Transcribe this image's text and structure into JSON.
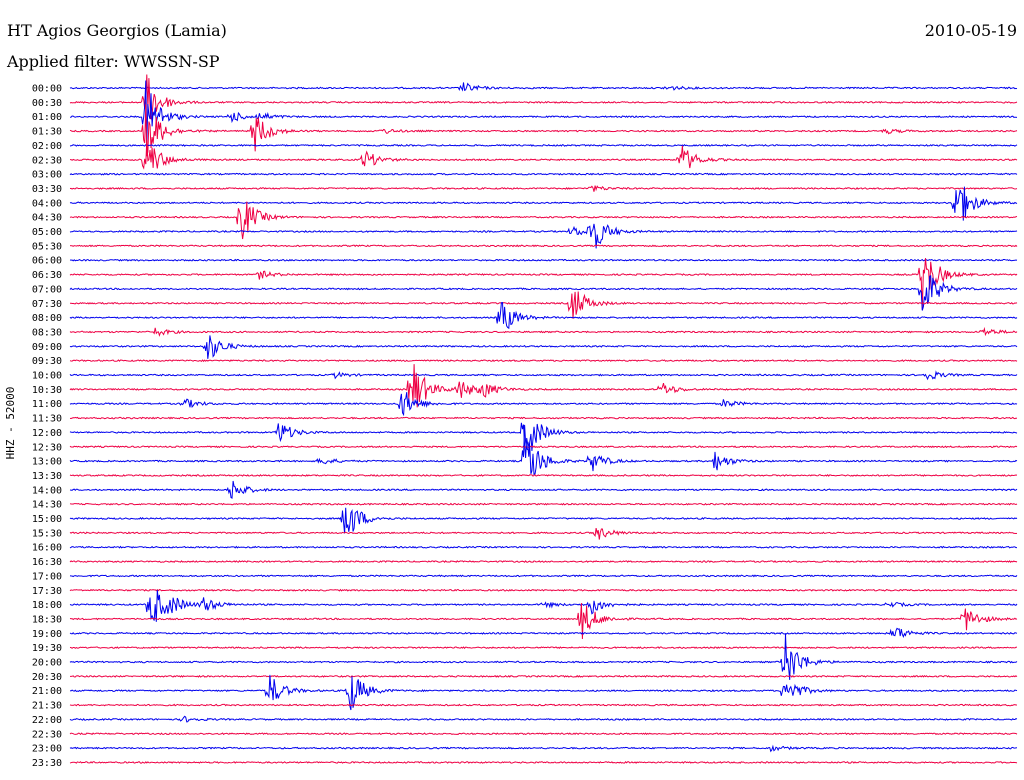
{
  "header": {
    "station": "HT Agios Georgios (Lamia)",
    "date": "2010-05-19",
    "filter": "Applied filter: WWSSN-SP"
  },
  "chart_data": {
    "type": "line",
    "title": "HT Agios Georgios (Lamia)",
    "subtitle": "Applied filter: WWSSN-SP",
    "ylabel": "HHZ - 52000",
    "xlabel": "",
    "colors": [
      "#0000ee",
      "#ee0044"
    ],
    "grid": false,
    "legend": "none",
    "rows": [
      "00:00",
      "00:30",
      "01:00",
      "01:30",
      "02:00",
      "02:30",
      "03:00",
      "03:30",
      "04:00",
      "04:30",
      "05:00",
      "05:30",
      "06:00",
      "06:30",
      "07:00",
      "07:30",
      "08:00",
      "08:30",
      "09:00",
      "09:30",
      "10:00",
      "10:30",
      "11:00",
      "11:30",
      "12:00",
      "12:30",
      "13:00",
      "13:30",
      "14:00",
      "14:30",
      "15:00",
      "15:30",
      "16:00",
      "16:30",
      "17:00",
      "17:30",
      "18:00",
      "18:30",
      "19:00",
      "19:30",
      "20:00",
      "20:30",
      "21:00",
      "21:30",
      "22:00",
      "22:30",
      "23:00",
      "23:30"
    ],
    "events": [
      {
        "row": 0,
        "x": 0.415,
        "amp": 0.4
      },
      {
        "row": 0,
        "x": 0.63,
        "amp": 0.2
      },
      {
        "row": 1,
        "x": 0.08,
        "amp": 2.2
      },
      {
        "row": 2,
        "x": 0.08,
        "amp": 2.6
      },
      {
        "row": 2,
        "x": 0.17,
        "amp": 0.4
      },
      {
        "row": 2,
        "x": 0.2,
        "amp": 0.3
      },
      {
        "row": 3,
        "x": 0.08,
        "amp": 2.6
      },
      {
        "row": 3,
        "x": 0.195,
        "amp": 1.5
      },
      {
        "row": 3,
        "x": 0.33,
        "amp": 0.2
      },
      {
        "row": 3,
        "x": 0.86,
        "amp": 0.2
      },
      {
        "row": 5,
        "x": 0.08,
        "amp": 1.8
      },
      {
        "row": 5,
        "x": 0.31,
        "amp": 0.8
      },
      {
        "row": 5,
        "x": 0.645,
        "amp": 1.2
      },
      {
        "row": 7,
        "x": 0.55,
        "amp": 0.25
      },
      {
        "row": 8,
        "x": 0.935,
        "amp": 2.5
      },
      {
        "row": 9,
        "x": 0.18,
        "amp": 2.0
      },
      {
        "row": 10,
        "x": 0.55,
        "amp": 1.8
      },
      {
        "row": 10,
        "x": 0.53,
        "amp": 0.4
      },
      {
        "row": 13,
        "x": 0.2,
        "amp": 0.3
      },
      {
        "row": 13,
        "x": 0.9,
        "amp": 2.5
      },
      {
        "row": 14,
        "x": 0.9,
        "amp": 2.2
      },
      {
        "row": 15,
        "x": 0.53,
        "amp": 1.5
      },
      {
        "row": 16,
        "x": 0.455,
        "amp": 1.4
      },
      {
        "row": 17,
        "x": 0.09,
        "amp": 0.3
      },
      {
        "row": 17,
        "x": 0.965,
        "amp": 0.3
      },
      {
        "row": 18,
        "x": 0.145,
        "amp": 1.2
      },
      {
        "row": 20,
        "x": 0.905,
        "amp": 0.4
      },
      {
        "row": 20,
        "x": 0.28,
        "amp": 0.2
      },
      {
        "row": 21,
        "x": 0.36,
        "amp": 2.5
      },
      {
        "row": 21,
        "x": 0.41,
        "amp": 0.8
      },
      {
        "row": 21,
        "x": 0.435,
        "amp": 0.6
      },
      {
        "row": 21,
        "x": 0.625,
        "amp": 0.5
      },
      {
        "row": 22,
        "x": 0.35,
        "amp": 1.2
      },
      {
        "row": 22,
        "x": 0.12,
        "amp": 0.4
      },
      {
        "row": 22,
        "x": 0.69,
        "amp": 0.3
      },
      {
        "row": 24,
        "x": 0.48,
        "amp": 2.4
      },
      {
        "row": 24,
        "x": 0.22,
        "amp": 0.9
      },
      {
        "row": 26,
        "x": 0.48,
        "amp": 2.8
      },
      {
        "row": 26,
        "x": 0.55,
        "amp": 0.8
      },
      {
        "row": 26,
        "x": 0.68,
        "amp": 0.8
      },
      {
        "row": 26,
        "x": 0.265,
        "amp": 0.3
      },
      {
        "row": 28,
        "x": 0.17,
        "amp": 0.8
      },
      {
        "row": 30,
        "x": 0.29,
        "amp": 2.0
      },
      {
        "row": 31,
        "x": 0.555,
        "amp": 0.6
      },
      {
        "row": 36,
        "x": 0.085,
        "amp": 2.0
      },
      {
        "row": 36,
        "x": 0.105,
        "amp": 0.5
      },
      {
        "row": 36,
        "x": 0.14,
        "amp": 0.6
      },
      {
        "row": 36,
        "x": 0.55,
        "amp": 0.7
      },
      {
        "row": 36,
        "x": 0.5,
        "amp": 0.2
      },
      {
        "row": 36,
        "x": 0.865,
        "amp": 0.2
      },
      {
        "row": 37,
        "x": 0.54,
        "amp": 1.5
      },
      {
        "row": 37,
        "x": 0.945,
        "amp": 1.0
      },
      {
        "row": 38,
        "x": 0.87,
        "amp": 0.6
      },
      {
        "row": 40,
        "x": 0.755,
        "amp": 2.3
      },
      {
        "row": 42,
        "x": 0.21,
        "amp": 1.3
      },
      {
        "row": 42,
        "x": 0.295,
        "amp": 1.8
      },
      {
        "row": 42,
        "x": 0.755,
        "amp": 1.2
      },
      {
        "row": 44,
        "x": 0.12,
        "amp": 0.2
      },
      {
        "row": 46,
        "x": 0.74,
        "amp": 0.2
      }
    ]
  }
}
